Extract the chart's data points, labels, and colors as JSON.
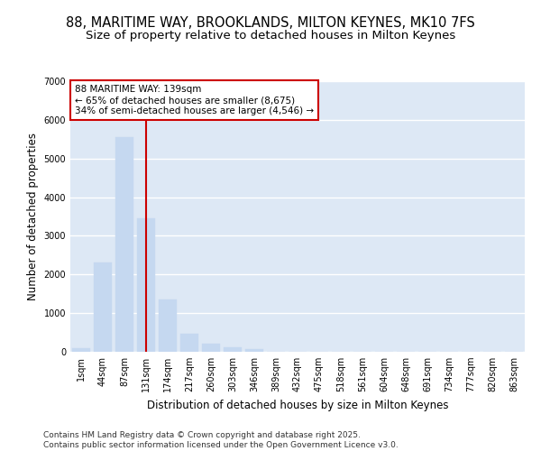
{
  "title_line1": "88, MARITIME WAY, BROOKLANDS, MILTON KEYNES, MK10 7FS",
  "title_line2": "Size of property relative to detached houses in Milton Keynes",
  "xlabel": "Distribution of detached houses by size in Milton Keynes",
  "ylabel": "Number of detached properties",
  "categories": [
    "1sqm",
    "44sqm",
    "87sqm",
    "131sqm",
    "174sqm",
    "217sqm",
    "260sqm",
    "303sqm",
    "346sqm",
    "389sqm",
    "432sqm",
    "475sqm",
    "518sqm",
    "561sqm",
    "604sqm",
    "648sqm",
    "691sqm",
    "734sqm",
    "777sqm",
    "820sqm",
    "863sqm"
  ],
  "values": [
    100,
    2300,
    5550,
    3450,
    1350,
    470,
    210,
    110,
    60,
    0,
    0,
    0,
    0,
    0,
    0,
    0,
    0,
    0,
    0,
    0,
    0
  ],
  "bar_color": "#c5d8f0",
  "bar_edgecolor": "#c5d8f0",
  "vline_color": "#cc0000",
  "vline_x": 3,
  "annotation_text": "88 MARITIME WAY: 139sqm\n← 65% of detached houses are smaller (8,675)\n34% of semi-detached houses are larger (4,546) →",
  "annotation_box_edgecolor": "#cc0000",
  "ylim": [
    0,
    7000
  ],
  "yticks": [
    0,
    1000,
    2000,
    3000,
    4000,
    5000,
    6000,
    7000
  ],
  "background_color": "#dde8f5",
  "grid_color": "#ffffff",
  "figure_facecolor": "#ffffff",
  "footer_text": "Contains HM Land Registry data © Crown copyright and database right 2025.\nContains public sector information licensed under the Open Government Licence v3.0.",
  "title_fontsize": 10.5,
  "subtitle_fontsize": 9.5,
  "axis_label_fontsize": 8.5,
  "tick_fontsize": 7,
  "annotation_fontsize": 7.5,
  "footer_fontsize": 6.5
}
